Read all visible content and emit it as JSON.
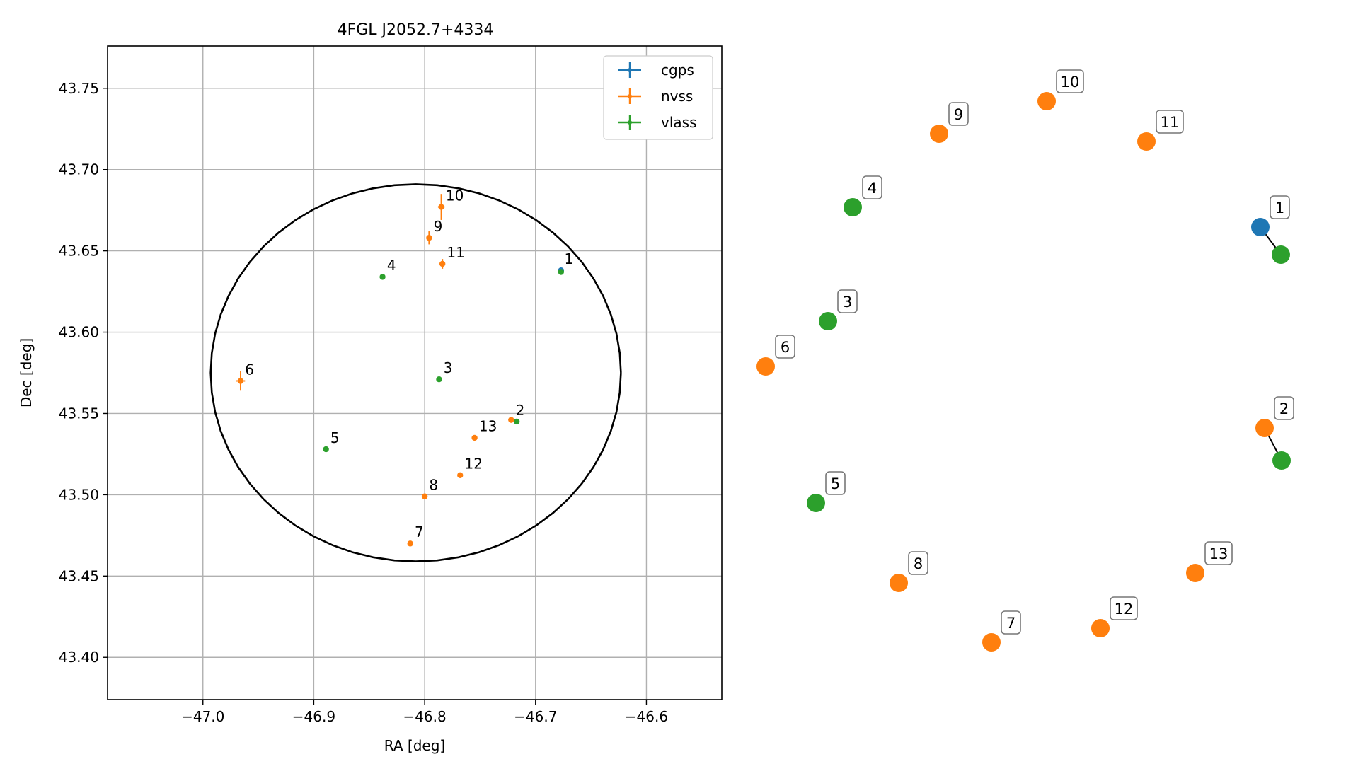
{
  "colors": {
    "cgps": "#1f77b4",
    "nvss": "#ff7f0e",
    "vlass": "#2ca02c",
    "grid": "#b0b0b0",
    "ellipse": "#000000"
  },
  "chart_data": [
    {
      "type": "scatter",
      "title": "4FGL J2052.7+4334",
      "xlabel": "RA [deg]",
      "ylabel": "Dec [deg]",
      "xlim": [
        -47.086,
        -46.532
      ],
      "ylim": [
        43.374,
        43.776
      ],
      "xticks": [
        -47.0,
        -46.9,
        -46.8,
        -46.7,
        -46.6
      ],
      "xtick_labels": [
        "−47.0",
        "−46.9",
        "−46.8",
        "−46.7",
        "−46.6"
      ],
      "yticks": [
        43.4,
        43.45,
        43.5,
        43.55,
        43.6,
        43.65,
        43.7,
        43.75
      ],
      "ytick_labels": [
        "43.40",
        "43.45",
        "43.50",
        "43.55",
        "43.60",
        "43.65",
        "43.70",
        "43.75"
      ],
      "grid": true,
      "legend_position": "top-right",
      "ellipse": {
        "center_ra": -46.808,
        "center_dec": 43.575,
        "semi_ra": 0.185,
        "semi_dec": 0.116
      },
      "series": [
        {
          "name": "cgps",
          "color_key": "cgps",
          "points": [
            {
              "id": "1",
              "ra": -46.677,
              "dec": 43.638,
              "err_ra": 0.0015,
              "err_dec": 0.001
            }
          ]
        },
        {
          "name": "nvss",
          "color_key": "nvss",
          "points": [
            {
              "id": "2",
              "ra": -46.722,
              "dec": 43.546,
              "err_ra": 0.002,
              "err_dec": 0.001
            },
            {
              "id": "6",
              "ra": -46.966,
              "dec": 43.57,
              "err_ra": 0.004,
              "err_dec": 0.006
            },
            {
              "id": "7",
              "ra": -46.813,
              "dec": 43.47,
              "err_ra": 0.001,
              "err_dec": 0.001
            },
            {
              "id": "8",
              "ra": -46.8,
              "dec": 43.499,
              "err_ra": 0.001,
              "err_dec": 0.001
            },
            {
              "id": "9",
              "ra": -46.796,
              "dec": 43.658,
              "err_ra": 0.002,
              "err_dec": 0.004
            },
            {
              "id": "10",
              "ra": -46.785,
              "dec": 43.677,
              "err_ra": 0.003,
              "err_dec": 0.008
            },
            {
              "id": "11",
              "ra": -46.784,
              "dec": 43.642,
              "err_ra": 0.002,
              "err_dec": 0.003
            },
            {
              "id": "12",
              "ra": -46.768,
              "dec": 43.512,
              "err_ra": 0.001,
              "err_dec": 0.001
            },
            {
              "id": "13",
              "ra": -46.755,
              "dec": 43.535,
              "err_ra": 0.001,
              "err_dec": 0.001
            }
          ]
        },
        {
          "name": "vlass",
          "color_key": "vlass",
          "points": [
            {
              "id": "1",
              "ra": -46.677,
              "dec": 43.637,
              "err_ra": 0.0005,
              "err_dec": 0.0005
            },
            {
              "id": "2",
              "ra": -46.717,
              "dec": 43.545,
              "err_ra": 0.0005,
              "err_dec": 0.0005
            },
            {
              "id": "3",
              "ra": -46.787,
              "dec": 43.571,
              "err_ra": 0.0005,
              "err_dec": 0.0005
            },
            {
              "id": "4",
              "ra": -46.838,
              "dec": 43.634,
              "err_ra": 0.0005,
              "err_dec": 0.0005
            },
            {
              "id": "5",
              "ra": -46.889,
              "dec": 43.528,
              "err_ra": 0.0005,
              "err_dec": 0.0005
            }
          ]
        }
      ],
      "labels": [
        {
          "text": "1",
          "ra": -46.674,
          "dec": 43.642
        },
        {
          "text": "2",
          "ra": -46.718,
          "dec": 43.549
        },
        {
          "text": "3",
          "ra": -46.783,
          "dec": 43.575
        },
        {
          "text": "4",
          "ra": -46.834,
          "dec": 43.638
        },
        {
          "text": "5",
          "ra": -46.885,
          "dec": 43.532
        },
        {
          "text": "6",
          "ra": -46.962,
          "dec": 43.574
        },
        {
          "text": "7",
          "ra": -46.809,
          "dec": 43.474
        },
        {
          "text": "8",
          "ra": -46.796,
          "dec": 43.503
        },
        {
          "text": "9",
          "ra": -46.792,
          "dec": 43.662
        },
        {
          "text": "10",
          "ra": -46.781,
          "dec": 43.681
        },
        {
          "text": "11",
          "ra": -46.78,
          "dec": 43.646
        },
        {
          "text": "12",
          "ra": -46.764,
          "dec": 43.516
        },
        {
          "text": "13",
          "ra": -46.751,
          "dec": 43.539
        }
      ]
    }
  ],
  "network": {
    "type": "network",
    "nodes": [
      {
        "id": "1",
        "color_key": "cgps"
      },
      {
        "id": "",
        "color_key": "vlass"
      },
      {
        "id": "2",
        "color_key": "nvss"
      },
      {
        "id": "",
        "color_key": "vlass"
      },
      {
        "id": "3",
        "color_key": "vlass"
      },
      {
        "id": "4",
        "color_key": "vlass"
      },
      {
        "id": "5",
        "color_key": "vlass"
      },
      {
        "id": "6",
        "color_key": "nvss"
      },
      {
        "id": "7",
        "color_key": "nvss"
      },
      {
        "id": "8",
        "color_key": "nvss"
      },
      {
        "id": "9",
        "color_key": "nvss"
      },
      {
        "id": "10",
        "color_key": "nvss"
      },
      {
        "id": "11",
        "color_key": "nvss"
      },
      {
        "id": "12",
        "color_key": "nvss"
      },
      {
        "id": "13",
        "color_key": "nvss"
      }
    ],
    "edges": [
      [
        "1",
        "vlass-a"
      ],
      [
        "2",
        "vlass-b"
      ]
    ]
  }
}
